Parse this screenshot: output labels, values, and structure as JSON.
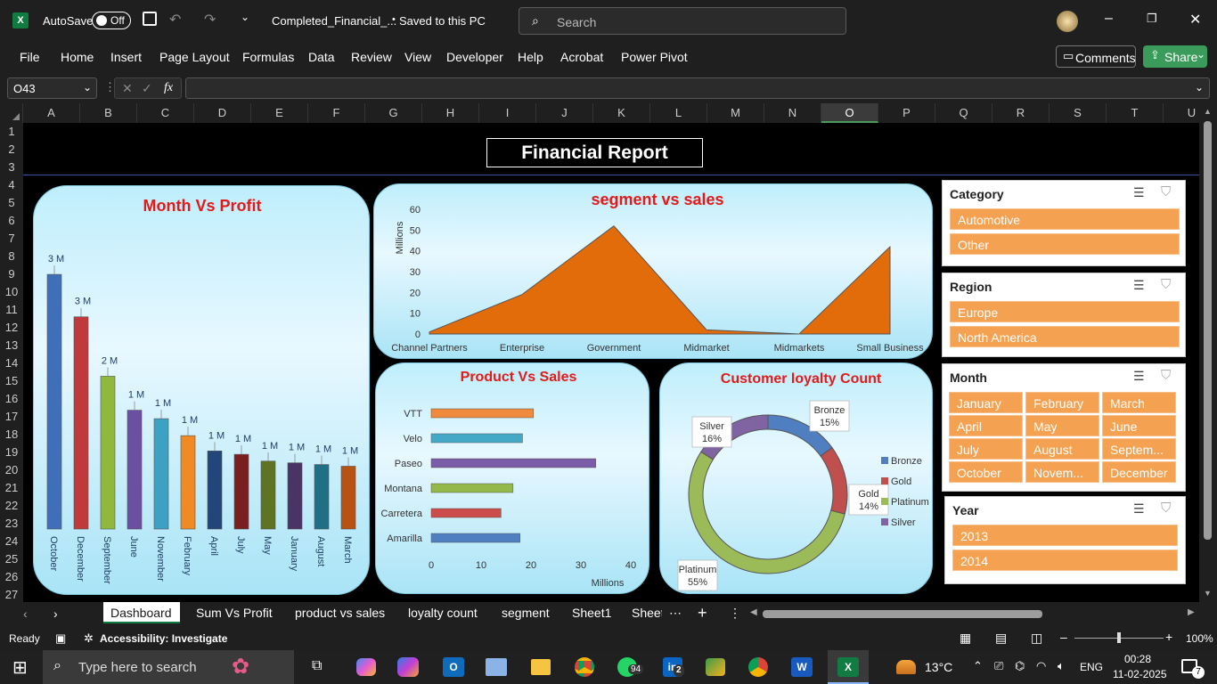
{
  "titlebar": {
    "autosave_label": "AutoSave",
    "autosave_state": "Off",
    "filename": "Completed_Financial_...",
    "saved_status": "Saved to this PC",
    "search_placeholder": "Search"
  },
  "ribbon": {
    "tabs": [
      "File",
      "Home",
      "Insert",
      "Page Layout",
      "Formulas",
      "Data",
      "Review",
      "View",
      "Developer",
      "Help",
      "Acrobat",
      "Power Pivot"
    ],
    "comments_label": "Comments",
    "share_label": "Share"
  },
  "formula_bar": {
    "name_box": "O43",
    "fx_label": "fx",
    "value": ""
  },
  "columns": [
    "A",
    "B",
    "C",
    "D",
    "E",
    "F",
    "G",
    "H",
    "I",
    "J",
    "K",
    "L",
    "M",
    "N",
    "O",
    "P",
    "Q",
    "R",
    "S",
    "T",
    "U"
  ],
  "selected_column": "O",
  "rows": [
    "1",
    "2",
    "3",
    "4",
    "5",
    "6",
    "7",
    "8",
    "9",
    "10",
    "11",
    "12",
    "13",
    "14",
    "15",
    "16",
    "17",
    "18",
    "19",
    "20",
    "21",
    "22",
    "23",
    "24",
    "25",
    "26",
    "27"
  ],
  "dashboard": {
    "title": "Financial Report"
  },
  "chart_data": [
    {
      "type": "bar",
      "title": "Month Vs Profit",
      "categories": [
        "October",
        "December",
        "September",
        "June",
        "November",
        "February",
        "April",
        "July",
        "May",
        "January",
        "August",
        "March"
      ],
      "values": [
        3.0,
        2.5,
        1.8,
        1.4,
        1.3,
        1.1,
        0.92,
        0.88,
        0.8,
        0.78,
        0.76,
        0.74
      ],
      "data_labels": [
        "3 M",
        "3 M",
        "2 M",
        "1 M",
        "1 M",
        "1 M",
        "1 M",
        "1 M",
        "1 M",
        "1 M",
        "1 M",
        "1 M"
      ],
      "colors": [
        "#3f6fb8",
        "#c0393b",
        "#8fb83c",
        "#6b4fa0",
        "#3da1c4",
        "#f08a24",
        "#23467a",
        "#7a1f1f",
        "#5e7424",
        "#4a3466",
        "#1f6f85",
        "#b65212"
      ],
      "ylim": [
        0,
        3.2
      ]
    },
    {
      "type": "area",
      "title": "segment vs sales",
      "ylabel": "Millions",
      "categories": [
        "Channel Partners",
        "Enterprise",
        "Government",
        "Midmarket",
        "Midmarkets",
        "Small Business"
      ],
      "values": [
        1,
        19,
        52,
        2,
        0,
        42
      ],
      "yticks": [
        "0",
        "10",
        "20",
        "30",
        "40",
        "50",
        "60"
      ],
      "ylim": [
        0,
        60
      ],
      "color": "#e36c0a"
    },
    {
      "type": "bar",
      "orientation": "horizontal",
      "title": "Product Vs Sales",
      "xlabel": "Millions",
      "categories": [
        "VTT",
        "Velo",
        "Paseo",
        "Montana",
        "Carretera",
        "Amarilla"
      ],
      "values": [
        20.5,
        18.3,
        33,
        16.4,
        14,
        17.8
      ],
      "colors": [
        "#f08a3c",
        "#44a9c6",
        "#7b5ca8",
        "#94b84a",
        "#cc4b4b",
        "#4f7ec1"
      ],
      "xticks": [
        "0",
        "10",
        "20",
        "30",
        "40"
      ],
      "xlim": [
        0,
        40
      ]
    },
    {
      "type": "pie",
      "donut": true,
      "title": "Customer loyalty Count",
      "labels": [
        "Bronze",
        "Gold",
        "Platinum",
        "Silver"
      ],
      "values": [
        15,
        14,
        55,
        16
      ],
      "percent_labels": [
        "15%",
        "14%",
        "55%",
        "16%"
      ],
      "colors": [
        "#4f7ec1",
        "#c0504d",
        "#9bbb59",
        "#8064a2"
      ]
    }
  ],
  "slicers": {
    "category": {
      "title": "Category",
      "items": [
        "Automotive",
        "Other"
      ]
    },
    "region": {
      "title": "Region",
      "items": [
        "Europe",
        "North America"
      ]
    },
    "month": {
      "title": "Month",
      "items": [
        "January",
        "February",
        "March",
        "April",
        "May",
        "June",
        "July",
        "August",
        "Septem...",
        "October",
        "Novem...",
        "December"
      ]
    },
    "year": {
      "title": "Year",
      "items": [
        "2013",
        "2014"
      ]
    }
  },
  "sheet_tabs": [
    "Dashboard",
    "Sum Vs Profit",
    "product vs sales",
    "loyalty count",
    "segment",
    "Sheet1",
    "Sheet"
  ],
  "active_tab": "Dashboard",
  "status": {
    "ready": "Ready",
    "accessibility": "Accessibility: Investigate",
    "zoom": "100%"
  },
  "taskbar": {
    "search_placeholder": "Type here to search",
    "badge_whatsapp": "94",
    "badge_linkedin": "2",
    "temperature": "13°C",
    "language": "ENG",
    "time": "00:28",
    "date": "11-02-2025",
    "notification_count": "7"
  }
}
